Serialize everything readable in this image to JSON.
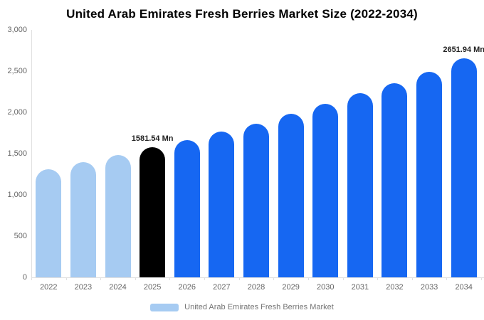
{
  "title": "United Arab Emirates Fresh Berries Market Size (2022-2034)",
  "legend": {
    "label": "United Arab Emirates Fresh Berries Market",
    "swatch_color": "#a6cbf2"
  },
  "colors": {
    "past": "#a6cbf2",
    "highlight": "#000000",
    "forecast": "#1667f2",
    "axis_line": "#e0e0e0",
    "tick_text": "#666666",
    "label_text": "#222222"
  },
  "chart_data": {
    "type": "bar",
    "title": "United Arab Emirates Fresh Berries Market Size (2022-2034)",
    "categories": [
      "2022",
      "2023",
      "2024",
      "2025",
      "2026",
      "2027",
      "2028",
      "2029",
      "2030",
      "2031",
      "2032",
      "2033",
      "2034"
    ],
    "values": [
      1310,
      1395,
      1480,
      1581.54,
      1665,
      1765,
      1860,
      1980,
      2100,
      2230,
      2350,
      2495,
      2651.94
    ],
    "unit": "Mn",
    "xlabel": "",
    "ylabel": "",
    "ylim": [
      0,
      3000
    ],
    "y_ticks": [
      0,
      500,
      1000,
      1500,
      2000,
      2500,
      3000
    ],
    "y_tick_labels": [
      "0",
      "500",
      "1,000",
      "1,500",
      "2,000",
      "2,500",
      "3,000"
    ],
    "bar_styles": [
      "past",
      "past",
      "past",
      "highlight",
      "forecast",
      "forecast",
      "forecast",
      "forecast",
      "forecast",
      "forecast",
      "forecast",
      "forecast",
      "forecast"
    ],
    "annotations": [
      {
        "category": "2025",
        "text": "1581.54 Mn"
      },
      {
        "category": "2034",
        "text": "2651.94 Mn"
      }
    ],
    "grid": false,
    "legend_position": "bottom"
  }
}
